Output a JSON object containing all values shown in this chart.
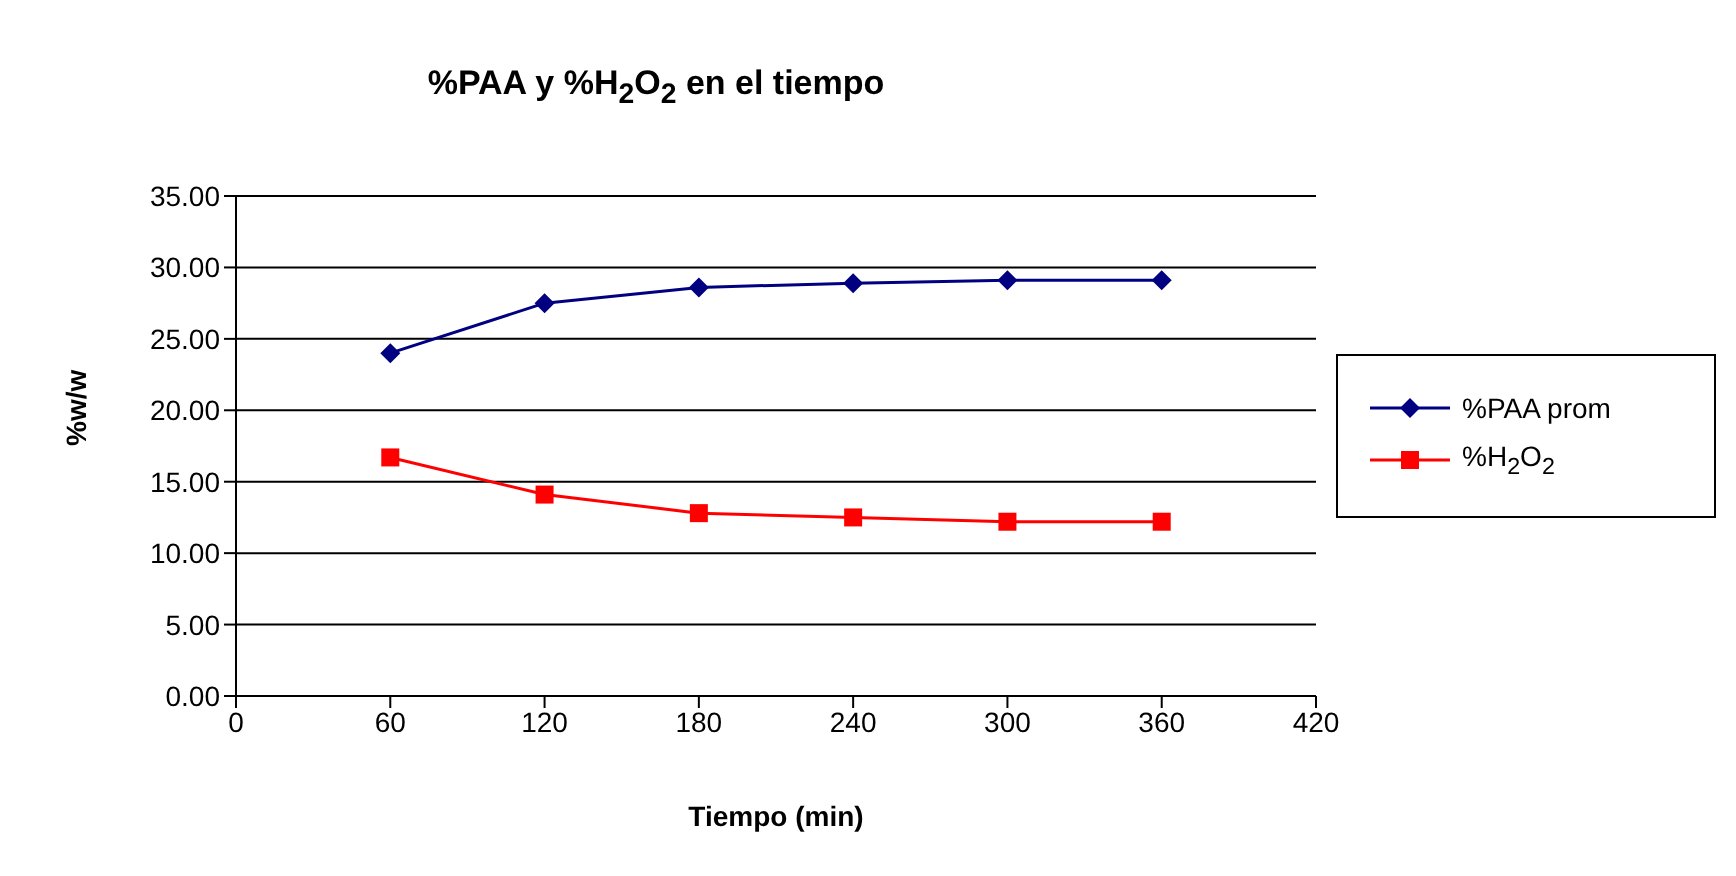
{
  "chart_data": {
    "type": "line",
    "title": "%PAA y %H$_{2}$O$_{2}$ en el tiempo",
    "xlabel": "Tiempo (min)",
    "ylabel": "%w/w",
    "x": [
      60,
      120,
      180,
      240,
      300,
      360
    ],
    "series": [
      {
        "name": "%PAA prom",
        "color": "#000080",
        "marker": "diamond",
        "values": [
          24.0,
          27.5,
          28.6,
          28.9,
          29.1,
          29.1
        ]
      },
      {
        "name": "%H$_{2}$O$_{2}$",
        "color": "#ff0000",
        "marker": "square",
        "values": [
          16.7,
          14.1,
          12.8,
          12.5,
          12.2,
          12.2
        ]
      }
    ],
    "xlim": [
      0,
      420
    ],
    "xticks": [
      0,
      60,
      120,
      180,
      240,
      300,
      360,
      420
    ],
    "ylim": [
      0,
      35
    ],
    "yticks": [
      {
        "value": 0,
        "label": "0.00"
      },
      {
        "value": 5,
        "label": "5.00"
      },
      {
        "value": 10,
        "label": "10.00"
      },
      {
        "value": 15,
        "label": "15.00"
      },
      {
        "value": 20,
        "label": "20.00"
      },
      {
        "value": 25,
        "label": "25.00"
      },
      {
        "value": 30,
        "label": "30.00"
      },
      {
        "value": 35,
        "label": "35.00"
      }
    ],
    "grid": "y",
    "legend": "right",
    "line_style": "solid"
  }
}
